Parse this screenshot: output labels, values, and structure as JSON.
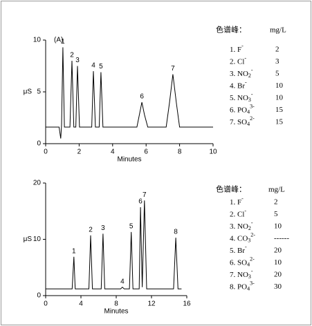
{
  "chart_data": [
    {
      "type": "line",
      "annotation": "(A)",
      "xlabel": "Minutes",
      "ylabel": "μS",
      "xlim": [
        0,
        10
      ],
      "xticks": [
        0,
        2,
        4,
        6,
        8,
        10
      ],
      "ylim": [
        0,
        10
      ],
      "yticks": [
        0,
        5,
        10
      ],
      "series": [
        {
          "color": "#000000",
          "x": [
            0,
            0.8,
            0.9,
            0.95,
            1.03,
            1.12,
            1.45,
            1.57,
            1.68,
            1.8,
            1.9,
            2.02,
            2.75,
            2.85,
            2.97,
            3.2,
            3.3,
            3.42,
            5.45,
            5.6,
            5.75,
            5.9,
            6.1,
            7.2,
            7.4,
            7.6,
            7.8,
            8.0,
            10
          ],
          "values": [
            1.6,
            1.6,
            0.5,
            1.8,
            9.3,
            1.6,
            1.6,
            8.0,
            1.6,
            1.6,
            7.5,
            1.6,
            1.6,
            7.0,
            1.6,
            1.6,
            6.9,
            1.6,
            1.6,
            2.8,
            4.0,
            2.8,
            1.6,
            1.6,
            4.0,
            6.7,
            4.0,
            1.6,
            1.6
          ]
        }
      ],
      "peak_labels": [
        "1",
        "2",
        "3",
        "4",
        "5",
        "6",
        "7"
      ],
      "legend_table": {
        "header": [
          "色谱峰：",
          "mg/L"
        ],
        "rows": [
          {
            "name": "1. F",
            "sup": "-",
            "conc": 2
          },
          {
            "name": "2. Cl",
            "sup": "-",
            "conc": 3
          },
          {
            "name": "3. NO",
            "sub": "2",
            "sup": "-",
            "conc": 5
          },
          {
            "name": "4. Br",
            "sup": "-",
            "conc": 10
          },
          {
            "name": "5. NO",
            "sub": "3",
            "sup": "-",
            "conc": 10
          },
          {
            "name": "6. PO",
            "sub": "4",
            "sup": "3-",
            "conc": 15
          },
          {
            "name": "7. SO",
            "sub": "4",
            "sup": "2-",
            "conc": 15
          }
        ]
      }
    },
    {
      "type": "line",
      "xlabel": "Minutes",
      "ylabel": "μS",
      "xlim": [
        0,
        16
      ],
      "xticks": [
        0,
        4,
        8,
        12,
        16
      ],
      "ylim": [
        0,
        20
      ],
      "yticks": [
        0,
        10,
        20
      ],
      "series": [
        {
          "color": "#000000",
          "x": [
            0,
            3.0,
            3.2,
            3.35,
            4.9,
            5.1,
            5.3,
            6.3,
            6.5,
            6.7,
            8.5,
            8.7,
            8.9,
            9.5,
            9.7,
            9.9,
            10.6,
            10.75,
            10.95,
            11.2,
            11.45,
            14.5,
            14.75,
            15.0,
            15.4
          ],
          "values": [
            1.2,
            1.2,
            6.9,
            1.2,
            1.2,
            10.7,
            1.2,
            1.2,
            11.0,
            1.2,
            1.2,
            1.5,
            1.2,
            1.2,
            11.3,
            1.2,
            1.2,
            15.7,
            1.5,
            16.9,
            1.2,
            1.2,
            10.3,
            1.2,
            1.2
          ]
        }
      ],
      "peak_labels": [
        "1",
        "2",
        "3",
        "4",
        "5",
        "6",
        "7",
        "8"
      ],
      "legend_table": {
        "header": [
          "色谱峰：",
          "mg/L"
        ],
        "rows": [
          {
            "name": "1. F",
            "sup": "-",
            "conc": 2
          },
          {
            "name": "2. Cl",
            "sup": "-",
            "conc": 5
          },
          {
            "name": "3. NO",
            "sub": "2",
            "sup": "-",
            "conc": 10
          },
          {
            "name": "4. CO",
            "sub": "3",
            "sup": "2-",
            "conc": "------"
          },
          {
            "name": "5. Br",
            "sup": "-",
            "conc": 20
          },
          {
            "name": "6. SO",
            "sub": "4",
            "sup": "2-",
            "conc": 10
          },
          {
            "name": "7. NO",
            "sub": "3",
            "sup": "-",
            "conc": 20
          },
          {
            "name": "8. PO",
            "sub": "4",
            "sup": "3-",
            "conc": 30
          }
        ]
      }
    }
  ]
}
